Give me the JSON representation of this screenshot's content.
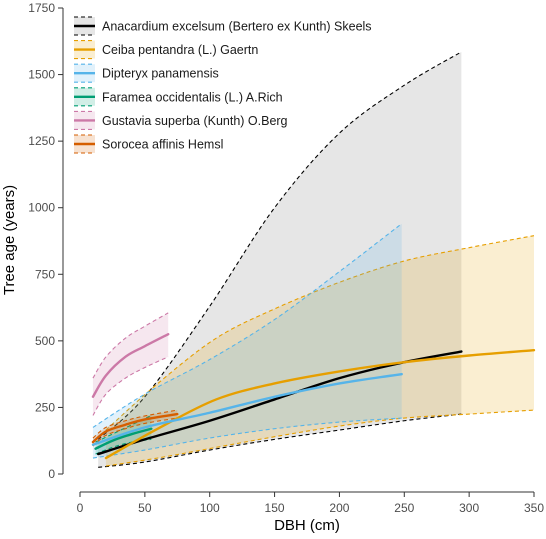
{
  "chart_data": {
    "type": "line",
    "title": "",
    "xlabel": "DBH (cm)",
    "ylabel": "Tree age (years)",
    "xlim": [
      0,
      350
    ],
    "ylim": [
      0,
      1750
    ],
    "xticks": [
      0,
      50,
      100,
      150,
      200,
      250,
      300,
      350
    ],
    "yticks": [
      0,
      250,
      500,
      750,
      1000,
      1250,
      1500,
      1750
    ],
    "legend_position": "top-left",
    "series": [
      {
        "name": "Anacardium excelsum (Bertero ex Kunth) Skeels",
        "color": "#000000",
        "ribbon_color": "#c8c8c8",
        "x": [
          14,
          50,
          100,
          150,
          200,
          250,
          294
        ],
        "y": [
          75,
          130,
          200,
          280,
          360,
          420,
          460
        ],
        "lower": [
          25,
          45,
          90,
          130,
          165,
          200,
          225
        ],
        "upper": [
          130,
          290,
          630,
          1000,
          1280,
          1460,
          1585
        ]
      },
      {
        "name": "Ceiba pentandra (L.) Gaertn",
        "color": "#e69f00",
        "ribbon_color": "#e69f00",
        "x": [
          20,
          60,
          105,
          150,
          200,
          250,
          300,
          350
        ],
        "y": [
          60,
          170,
          280,
          340,
          385,
          420,
          445,
          465
        ],
        "lower": [
          30,
          60,
          100,
          140,
          180,
          210,
          225,
          240
        ],
        "upper": [
          165,
          340,
          510,
          620,
          720,
          800,
          850,
          895
        ]
      },
      {
        "name": "Dipteryx panamensis",
        "color": "#56b4e9",
        "ribbon_color": "#56b4e9",
        "x": [
          10,
          50,
          100,
          150,
          200,
          248
        ],
        "y": [
          110,
          175,
          230,
          290,
          340,
          375
        ],
        "lower": [
          60,
          90,
          135,
          170,
          195,
          210
        ],
        "upper": [
          175,
          300,
          430,
          580,
          760,
          940
        ]
      },
      {
        "name": "Faramea occidentalis (L.) A.Rich",
        "color": "#009e73",
        "ribbon_color": "#009e73",
        "x": [
          12,
          25,
          40,
          55
        ],
        "y": [
          95,
          125,
          150,
          170
        ],
        "lower": [
          75,
          100,
          120,
          130
        ],
        "upper": [
          120,
          150,
          185,
          220
        ]
      },
      {
        "name": "Gustavia superba (Kunth) O.Berg",
        "color": "#cc79a7",
        "ribbon_color": "#cc79a7",
        "x": [
          10,
          20,
          35,
          50,
          68
        ],
        "y": [
          290,
          370,
          440,
          480,
          525
        ],
        "lower": [
          220,
          300,
          360,
          400,
          440
        ],
        "upper": [
          360,
          440,
          510,
          555,
          605
        ]
      },
      {
        "name": "Sorocea affinis Hemsl",
        "color": "#d55e00",
        "ribbon_color": "#d55e00",
        "x": [
          10,
          20,
          35,
          50,
          75
        ],
        "y": [
          120,
          160,
          185,
          205,
          225
        ],
        "lower": [
          105,
          145,
          170,
          190,
          210
        ],
        "upper": [
          135,
          175,
          200,
          218,
          240
        ]
      }
    ]
  }
}
